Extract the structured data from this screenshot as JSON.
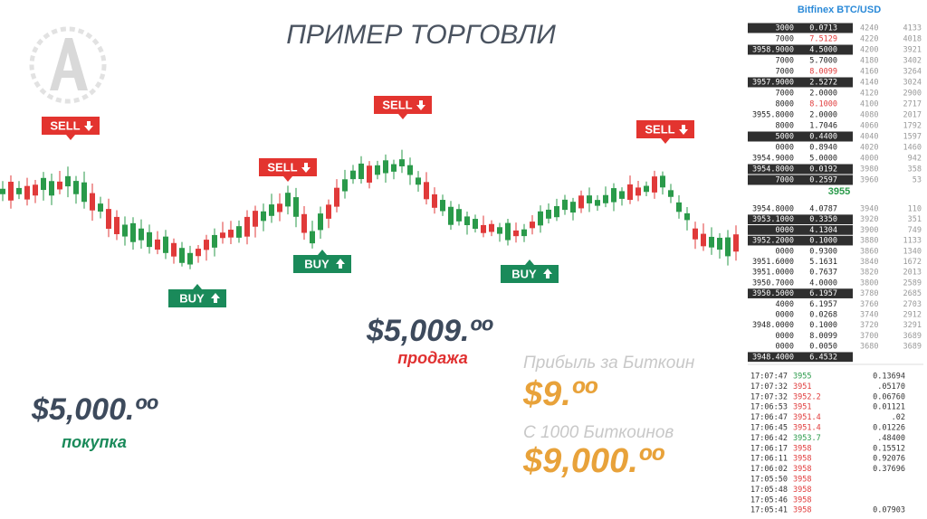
{
  "title": "ПРИМЕР ТОРГОВЛИ",
  "signals": [
    {
      "label": "SELL",
      "kind": "sell"
    },
    {
      "label": "SELL",
      "kind": "sell"
    },
    {
      "label": "SELL",
      "kind": "sell"
    },
    {
      "label": "SELL",
      "kind": "sell"
    },
    {
      "label": "BUY",
      "kind": "buy"
    },
    {
      "label": "BUY",
      "kind": "buy"
    },
    {
      "label": "BUY",
      "kind": "buy"
    }
  ],
  "sale": {
    "price": "$5,009.ºº",
    "label": "продажа"
  },
  "purchase": {
    "price": "$5,000.ºº",
    "label": "покупка"
  },
  "profit": {
    "caption": "Прибыль за Биткоин",
    "value": "$9.ºº",
    "caption2": "С 1000 Биткоинов",
    "value2": "$9,000.ºº"
  },
  "panel": {
    "title": "Bitfinex BTC/USD",
    "mid": "3955",
    "asks": [
      {
        "cells": [
          "3000",
          "0.0713",
          "4240",
          "4133"
        ],
        "highlight": true
      },
      {
        "cells": [
          "7000",
          "7.5129",
          "4220",
          "4018"
        ],
        "highlight": false
      },
      {
        "cells": [
          "3958.9000",
          "4.5000",
          "4200",
          "3921"
        ],
        "highlight": true
      },
      {
        "cells": [
          "7000",
          "5.7000",
          "4180",
          "3402"
        ],
        "highlight": false
      },
      {
        "cells": [
          "7000",
          "8.0099",
          "4160",
          "3264"
        ],
        "highlight": false
      },
      {
        "cells": [
          "3957.9000",
          "2.5272",
          "4140",
          "3024"
        ],
        "highlight": true
      },
      {
        "cells": [
          "7000",
          "2.0000",
          "4120",
          "2900"
        ],
        "highlight": false
      },
      {
        "cells": [
          "8000",
          "8.1000",
          "4100",
          "2717"
        ],
        "highlight": false
      },
      {
        "cells": [
          "3955.8000",
          "2.0000",
          "4080",
          "2017"
        ],
        "highlight": false
      },
      {
        "cells": [
          "8000",
          "1.7046",
          "4060",
          "1792"
        ],
        "highlight": false
      },
      {
        "cells": [
          "5000",
          "0.4400",
          "4040",
          "1597"
        ],
        "highlight": true
      },
      {
        "cells": [
          "0000",
          "0.8940",
          "4020",
          "1460"
        ],
        "highlight": false
      },
      {
        "cells": [
          "3954.9000",
          "5.0000",
          "4000",
          "942"
        ],
        "highlight": false
      },
      {
        "cells": [
          "3954.8000",
          "0.0192",
          "3980",
          "358"
        ],
        "highlight": true
      },
      {
        "cells": [
          "7000",
          "0.2597",
          "3960",
          "53"
        ],
        "highlight": true
      }
    ],
    "bids": [
      {
        "cells": [
          "3954.8000",
          "4.0787",
          "3940",
          "110"
        ],
        "highlight": false
      },
      {
        "cells": [
          "3953.1000",
          "0.3350",
          "3920",
          "351"
        ],
        "highlight": true
      },
      {
        "cells": [
          "0000",
          "4.1304",
          "3900",
          "749"
        ],
        "highlight": true
      },
      {
        "cells": [
          "3952.2000",
          "0.1000",
          "3880",
          "1133"
        ],
        "highlight": true
      },
      {
        "cells": [
          "0000",
          "0.9300",
          "3860",
          "1340"
        ],
        "highlight": false
      },
      {
        "cells": [
          "3951.6000",
          "5.1631",
          "3840",
          "1672"
        ],
        "highlight": false
      },
      {
        "cells": [
          "3951.0000",
          "0.7637",
          "3820",
          "2013"
        ],
        "highlight": false
      },
      {
        "cells": [
          "3950.7000",
          "4.0000",
          "3800",
          "2589"
        ],
        "highlight": false
      },
      {
        "cells": [
          "3950.5000",
          "6.1957",
          "3780",
          "2685"
        ],
        "highlight": true
      },
      {
        "cells": [
          "4000",
          "6.1957",
          "3760",
          "2703"
        ],
        "highlight": false
      },
      {
        "cells": [
          "0000",
          "0.0268",
          "3740",
          "2912"
        ],
        "highlight": false
      },
      {
        "cells": [
          "3948.0000",
          "0.1000",
          "3720",
          "3291"
        ],
        "highlight": false
      },
      {
        "cells": [
          "0000",
          "8.0099",
          "3700",
          "3689"
        ],
        "highlight": false
      },
      {
        "cells": [
          "0000",
          "0.0050",
          "3680",
          "3689"
        ],
        "highlight": false
      },
      {
        "cells": [
          "3948.4000",
          "6.4532"
        ],
        "highlight": true
      }
    ],
    "trades": [
      {
        "time": "17:07:47",
        "price": "3955",
        "amount": "0.13694",
        "color": "#2a9a4a"
      },
      {
        "time": "17:07:32",
        "price": "3951",
        "amount": ".05170",
        "color": "#e03a3a"
      },
      {
        "time": "17:07:32",
        "price": "3952.2",
        "amount": "0.06760",
        "color": "#e03a3a"
      },
      {
        "time": "17:06:53",
        "price": "3951",
        "amount": "0.01121",
        "color": "#e03a3a"
      },
      {
        "time": "17:06:47",
        "price": "3951.4",
        "amount": ".02",
        "color": "#e03a3a"
      },
      {
        "time": "17:06:45",
        "price": "3951.4",
        "amount": "0.01226",
        "color": "#e03a3a"
      },
      {
        "time": "17:06:42",
        "price": "3953.7",
        "amount": ".48400",
        "color": "#2a9a4a"
      },
      {
        "time": "17:06:17",
        "price": "3958",
        "amount": "0.15512",
        "color": "#e03a3a"
      },
      {
        "time": "17:06:11",
        "price": "3958",
        "amount": "0.92076",
        "color": "#e03a3a"
      },
      {
        "time": "17:06:02",
        "price": "3958",
        "amount": "0.37696",
        "color": "#e03a3a"
      },
      {
        "time": "17:05:50",
        "price": "3958",
        "color": "#e03a3a"
      },
      {
        "time": "17:05:48",
        "price": "3958",
        "color": "#e03a3a"
      },
      {
        "time": "17:05:46",
        "price": "3958",
        "color": "#e03a3a"
      },
      {
        "time": "17:05:41",
        "price": "3958",
        "amount": "0.07903",
        "color": "#e03a3a"
      }
    ]
  }
}
